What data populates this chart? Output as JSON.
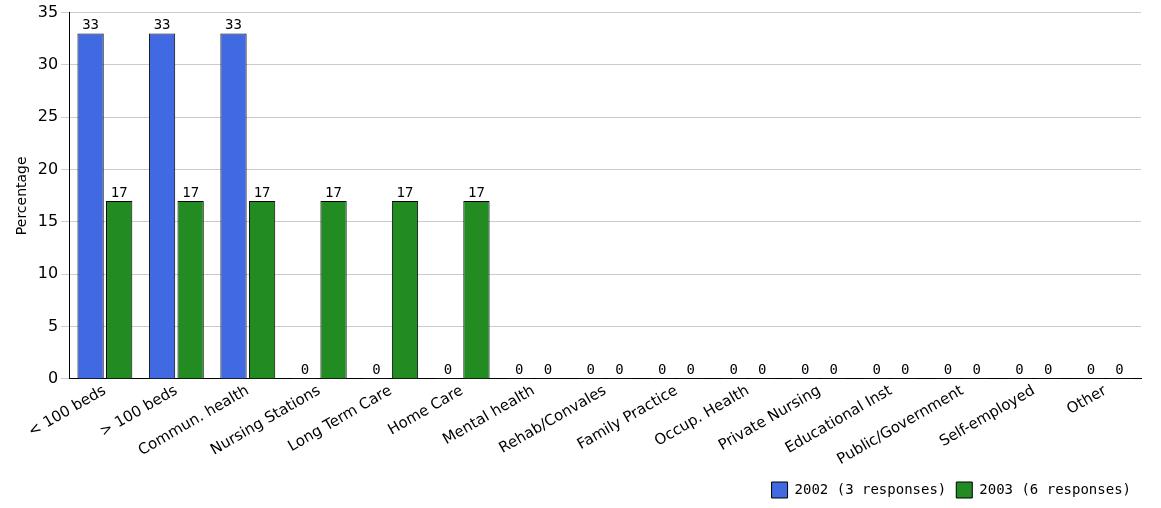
{
  "chart_data": {
    "type": "bar",
    "ylabel": "Percentage",
    "categories": [
      "< 100 beds",
      "> 100 beds",
      "Commun. health",
      "Nursing Stations",
      "Long Term Care",
      "Home Care",
      "Mental health",
      "Rehab/Convales",
      "Family Practice",
      "Occup. Health",
      "Private Nursing",
      "Educational Inst",
      "Public/Government",
      "Self-employed",
      "Other"
    ],
    "series": [
      {
        "name": "2002 (3 responses)",
        "color": "#4169e1",
        "values": [
          33,
          33,
          33,
          0,
          0,
          0,
          0,
          0,
          0,
          0,
          0,
          0,
          0,
          0,
          0
        ]
      },
      {
        "name": "2003 (6 responses)",
        "color": "#228b22",
        "values": [
          17,
          17,
          17,
          17,
          17,
          17,
          0,
          0,
          0,
          0,
          0,
          0,
          0,
          0,
          0
        ]
      }
    ],
    "ylim": [
      0,
      35
    ],
    "yticks": [
      0,
      5,
      10,
      15,
      20,
      25,
      30,
      35
    ],
    "grid": "y",
    "legend": "bottom right",
    "data_labels": true
  }
}
